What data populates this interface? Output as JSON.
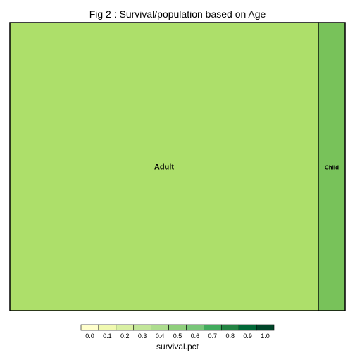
{
  "chart_data": {
    "type": "treemap",
    "title": "Fig 2 : Survival/population based on Age",
    "tiles": [
      {
        "label": "Adult",
        "population_share": 0.92,
        "survival_pct": 0.37,
        "color": "#addf6a"
      },
      {
        "label": "Child",
        "population_share": 0.08,
        "survival_pct": 0.52,
        "color": "#78c25a"
      }
    ],
    "legend": {
      "title": "survival.pct",
      "placement": "bottom",
      "range": [
        0,
        1
      ],
      "ticks": [
        "0.0",
        "0.1",
        "0.2",
        "0.3",
        "0.4",
        "0.5",
        "0.6",
        "0.7",
        "0.8",
        "0.9",
        "1.0"
      ],
      "colors": [
        "#ffffcc",
        "#f0f9b0",
        "#d9f0a3",
        "#c2e699",
        "#addd8e",
        "#8fcf7c",
        "#78c679",
        "#41ab5d",
        "#238443",
        "#006837",
        "#004529"
      ]
    }
  }
}
